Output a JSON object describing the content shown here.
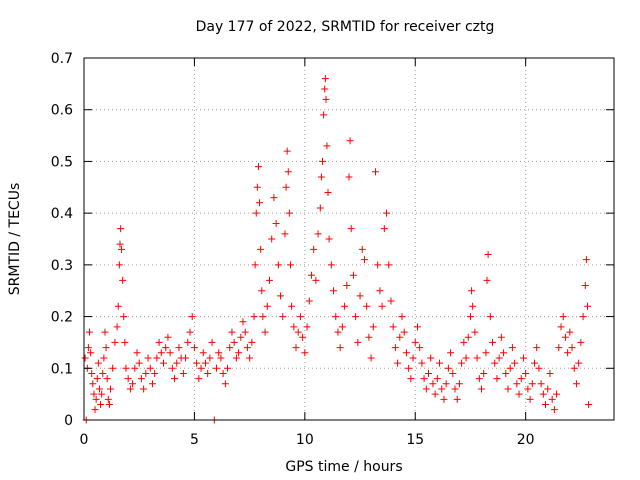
{
  "chart_data": {
    "type": "scatter",
    "title": "Day 177 of 2022, SRMTID for receiver cztg",
    "xlabel": "GPS time / hours",
    "ylabel": "SRMTID / TECUs",
    "xlim": [
      0,
      24
    ],
    "ylim": [
      0,
      0.7
    ],
    "xticks": [
      0,
      5,
      10,
      15,
      20
    ],
    "xtick_labels": [
      "0",
      "5",
      "10",
      "15",
      "20"
    ],
    "yticks": [
      0,
      0.1,
      0.2,
      0.3,
      0.4,
      0.5,
      0.6,
      0.7
    ],
    "ytick_labels": [
      "0",
      "0.1",
      "0.2",
      "0.3",
      "0.4",
      "0.5",
      "0.6",
      "0.7"
    ],
    "grid": true,
    "legend": "none",
    "marker": "plus",
    "color": "#ff0000",
    "series": [
      {
        "name": "SRMTID",
        "points": [
          [
            0.05,
            0.12
          ],
          [
            0.1,
            0.0
          ],
          [
            0.15,
            0.1
          ],
          [
            0.2,
            0.14
          ],
          [
            0.25,
            0.17
          ],
          [
            0.3,
            0.13
          ],
          [
            0.35,
            0.09
          ],
          [
            0.4,
            0.07
          ],
          [
            0.45,
            0.05
          ],
          [
            0.5,
            0.02
          ],
          [
            0.55,
            0.04
          ],
          [
            0.6,
            0.08
          ],
          [
            0.65,
            0.11
          ],
          [
            0.7,
            0.06
          ],
          [
            0.75,
            0.03
          ],
          [
            0.8,
            0.05
          ],
          [
            0.85,
            0.09
          ],
          [
            0.9,
            0.12
          ],
          [
            0.95,
            0.17
          ],
          [
            1.0,
            0.14
          ],
          [
            1.05,
            0.08
          ],
          [
            1.1,
            0.04
          ],
          [
            1.15,
            0.03
          ],
          [
            1.2,
            0.06
          ],
          [
            1.3,
            0.1
          ],
          [
            1.4,
            0.15
          ],
          [
            1.5,
            0.18
          ],
          [
            1.55,
            0.22
          ],
          [
            1.6,
            0.3
          ],
          [
            1.63,
            0.34
          ],
          [
            1.66,
            0.37
          ],
          [
            1.7,
            0.33
          ],
          [
            1.75,
            0.27
          ],
          [
            1.8,
            0.2
          ],
          [
            1.85,
            0.15
          ],
          [
            1.9,
            0.1
          ],
          [
            2.0,
            0.08
          ],
          [
            2.1,
            0.06
          ],
          [
            2.2,
            0.07
          ],
          [
            2.3,
            0.1
          ],
          [
            2.4,
            0.13
          ],
          [
            2.5,
            0.11
          ],
          [
            2.6,
            0.08
          ],
          [
            2.7,
            0.06
          ],
          [
            2.8,
            0.09
          ],
          [
            2.9,
            0.12
          ],
          [
            3.0,
            0.1
          ],
          [
            3.1,
            0.07
          ],
          [
            3.2,
            0.09
          ],
          [
            3.3,
            0.12
          ],
          [
            3.4,
            0.15
          ],
          [
            3.5,
            0.13
          ],
          [
            3.6,
            0.11
          ],
          [
            3.7,
            0.14
          ],
          [
            3.8,
            0.16
          ],
          [
            3.9,
            0.13
          ],
          [
            4.0,
            0.1
          ],
          [
            4.1,
            0.08
          ],
          [
            4.2,
            0.11
          ],
          [
            4.3,
            0.14
          ],
          [
            4.4,
            0.12
          ],
          [
            4.5,
            0.09
          ],
          [
            4.6,
            0.12
          ],
          [
            4.7,
            0.15
          ],
          [
            4.8,
            0.17
          ],
          [
            4.9,
            0.2
          ],
          [
            5.0,
            0.14
          ],
          [
            5.1,
            0.11
          ],
          [
            5.2,
            0.08
          ],
          [
            5.3,
            0.1
          ],
          [
            5.4,
            0.13
          ],
          [
            5.5,
            0.11
          ],
          [
            5.6,
            0.09
          ],
          [
            5.7,
            0.12
          ],
          [
            5.8,
            0.15
          ],
          [
            5.9,
            0.0
          ],
          [
            6.0,
            0.1
          ],
          [
            6.1,
            0.13
          ],
          [
            6.2,
            0.12
          ],
          [
            6.3,
            0.09
          ],
          [
            6.4,
            0.07
          ],
          [
            6.5,
            0.1
          ],
          [
            6.6,
            0.14
          ],
          [
            6.7,
            0.17
          ],
          [
            6.8,
            0.15
          ],
          [
            6.9,
            0.12
          ],
          [
            7.0,
            0.13
          ],
          [
            7.1,
            0.16
          ],
          [
            7.2,
            0.19
          ],
          [
            7.3,
            0.17
          ],
          [
            7.4,
            0.14
          ],
          [
            7.5,
            0.12
          ],
          [
            7.6,
            0.15
          ],
          [
            7.7,
            0.2
          ],
          [
            7.75,
            0.3
          ],
          [
            7.8,
            0.4
          ],
          [
            7.85,
            0.45
          ],
          [
            7.9,
            0.49
          ],
          [
            7.95,
            0.42
          ],
          [
            8.0,
            0.33
          ],
          [
            8.05,
            0.25
          ],
          [
            8.1,
            0.2
          ],
          [
            8.2,
            0.17
          ],
          [
            8.3,
            0.22
          ],
          [
            8.4,
            0.27
          ],
          [
            8.5,
            0.35
          ],
          [
            8.6,
            0.43
          ],
          [
            8.7,
            0.38
          ],
          [
            8.8,
            0.3
          ],
          [
            8.9,
            0.24
          ],
          [
            9.0,
            0.2
          ],
          [
            9.1,
            0.36
          ],
          [
            9.15,
            0.45
          ],
          [
            9.2,
            0.52
          ],
          [
            9.25,
            0.48
          ],
          [
            9.3,
            0.4
          ],
          [
            9.35,
            0.3
          ],
          [
            9.4,
            0.22
          ],
          [
            9.5,
            0.18
          ],
          [
            9.6,
            0.14
          ],
          [
            9.7,
            0.17
          ],
          [
            9.8,
            0.2
          ],
          [
            9.9,
            0.16
          ],
          [
            10.0,
            0.13
          ],
          [
            10.1,
            0.18
          ],
          [
            10.2,
            0.23
          ],
          [
            10.3,
            0.28
          ],
          [
            10.4,
            0.33
          ],
          [
            10.5,
            0.27
          ],
          [
            10.6,
            0.36
          ],
          [
            10.7,
            0.41
          ],
          [
            10.75,
            0.47
          ],
          [
            10.8,
            0.5
          ],
          [
            10.85,
            0.59
          ],
          [
            10.9,
            0.64
          ],
          [
            10.93,
            0.66
          ],
          [
            10.96,
            0.62
          ],
          [
            11.0,
            0.53
          ],
          [
            11.05,
            0.44
          ],
          [
            11.1,
            0.35
          ],
          [
            11.2,
            0.3
          ],
          [
            11.3,
            0.25
          ],
          [
            11.4,
            0.2
          ],
          [
            11.5,
            0.17
          ],
          [
            11.6,
            0.14
          ],
          [
            11.7,
            0.18
          ],
          [
            11.8,
            0.22
          ],
          [
            11.9,
            0.26
          ],
          [
            12.0,
            0.47
          ],
          [
            12.05,
            0.54
          ],
          [
            12.1,
            0.37
          ],
          [
            12.2,
            0.28
          ],
          [
            12.3,
            0.2
          ],
          [
            12.4,
            0.15
          ],
          [
            12.5,
            0.24
          ],
          [
            12.6,
            0.33
          ],
          [
            12.7,
            0.31
          ],
          [
            12.8,
            0.22
          ],
          [
            12.9,
            0.16
          ],
          [
            13.0,
            0.12
          ],
          [
            13.1,
            0.18
          ],
          [
            13.2,
            0.48
          ],
          [
            13.3,
            0.3
          ],
          [
            13.4,
            0.25
          ],
          [
            13.5,
            0.22
          ],
          [
            13.6,
            0.37
          ],
          [
            13.7,
            0.4
          ],
          [
            13.8,
            0.3
          ],
          [
            13.9,
            0.23
          ],
          [
            14.0,
            0.18
          ],
          [
            14.1,
            0.14
          ],
          [
            14.2,
            0.11
          ],
          [
            14.3,
            0.16
          ],
          [
            14.4,
            0.2
          ],
          [
            14.5,
            0.17
          ],
          [
            14.6,
            0.13
          ],
          [
            14.7,
            0.1
          ],
          [
            14.8,
            0.08
          ],
          [
            14.9,
            0.12
          ],
          [
            15.0,
            0.15
          ],
          [
            15.1,
            0.18
          ],
          [
            15.2,
            0.14
          ],
          [
            15.3,
            0.11
          ],
          [
            15.4,
            0.08
          ],
          [
            15.5,
            0.06
          ],
          [
            15.6,
            0.09
          ],
          [
            15.7,
            0.12
          ],
          [
            15.8,
            0.07
          ],
          [
            15.9,
            0.05
          ],
          [
            16.0,
            0.08
          ],
          [
            16.1,
            0.11
          ],
          [
            16.2,
            0.06
          ],
          [
            16.3,
            0.04
          ],
          [
            16.4,
            0.07
          ],
          [
            16.5,
            0.1
          ],
          [
            16.6,
            0.13
          ],
          [
            16.7,
            0.09
          ],
          [
            16.8,
            0.06
          ],
          [
            16.9,
            0.04
          ],
          [
            17.0,
            0.07
          ],
          [
            17.1,
            0.11
          ],
          [
            17.2,
            0.15
          ],
          [
            17.3,
            0.12
          ],
          [
            17.4,
            0.16
          ],
          [
            17.5,
            0.2
          ],
          [
            17.55,
            0.25
          ],
          [
            17.6,
            0.22
          ],
          [
            17.7,
            0.17
          ],
          [
            17.8,
            0.12
          ],
          [
            17.9,
            0.08
          ],
          [
            18.0,
            0.06
          ],
          [
            18.1,
            0.09
          ],
          [
            18.2,
            0.13
          ],
          [
            18.25,
            0.27
          ],
          [
            18.3,
            0.32
          ],
          [
            18.4,
            0.2
          ],
          [
            18.5,
            0.15
          ],
          [
            18.6,
            0.11
          ],
          [
            18.7,
            0.08
          ],
          [
            18.8,
            0.12
          ],
          [
            18.9,
            0.16
          ],
          [
            19.0,
            0.13
          ],
          [
            19.1,
            0.09
          ],
          [
            19.2,
            0.06
          ],
          [
            19.3,
            0.1
          ],
          [
            19.4,
            0.14
          ],
          [
            19.5,
            0.11
          ],
          [
            19.6,
            0.07
          ],
          [
            19.7,
            0.05
          ],
          [
            19.8,
            0.08
          ],
          [
            19.9,
            0.12
          ],
          [
            20.0,
            0.09
          ],
          [
            20.1,
            0.06
          ],
          [
            20.2,
            0.04
          ],
          [
            20.3,
            0.07
          ],
          [
            20.4,
            0.11
          ],
          [
            20.5,
            0.14
          ],
          [
            20.6,
            0.1
          ],
          [
            20.7,
            0.07
          ],
          [
            20.8,
            0.05
          ],
          [
            20.9,
            0.03
          ],
          [
            21.0,
            0.06
          ],
          [
            21.1,
            0.09
          ],
          [
            21.2,
            0.04
          ],
          [
            21.3,
            0.02
          ],
          [
            21.4,
            0.05
          ],
          [
            21.5,
            0.14
          ],
          [
            21.6,
            0.18
          ],
          [
            21.7,
            0.2
          ],
          [
            21.8,
            0.16
          ],
          [
            21.9,
            0.13
          ],
          [
            22.0,
            0.17
          ],
          [
            22.1,
            0.14
          ],
          [
            22.2,
            0.1
          ],
          [
            22.3,
            0.07
          ],
          [
            22.4,
            0.11
          ],
          [
            22.5,
            0.15
          ],
          [
            22.6,
            0.2
          ],
          [
            22.7,
            0.26
          ],
          [
            22.75,
            0.31
          ],
          [
            22.8,
            0.22
          ],
          [
            22.85,
            0.03
          ]
        ]
      }
    ]
  }
}
